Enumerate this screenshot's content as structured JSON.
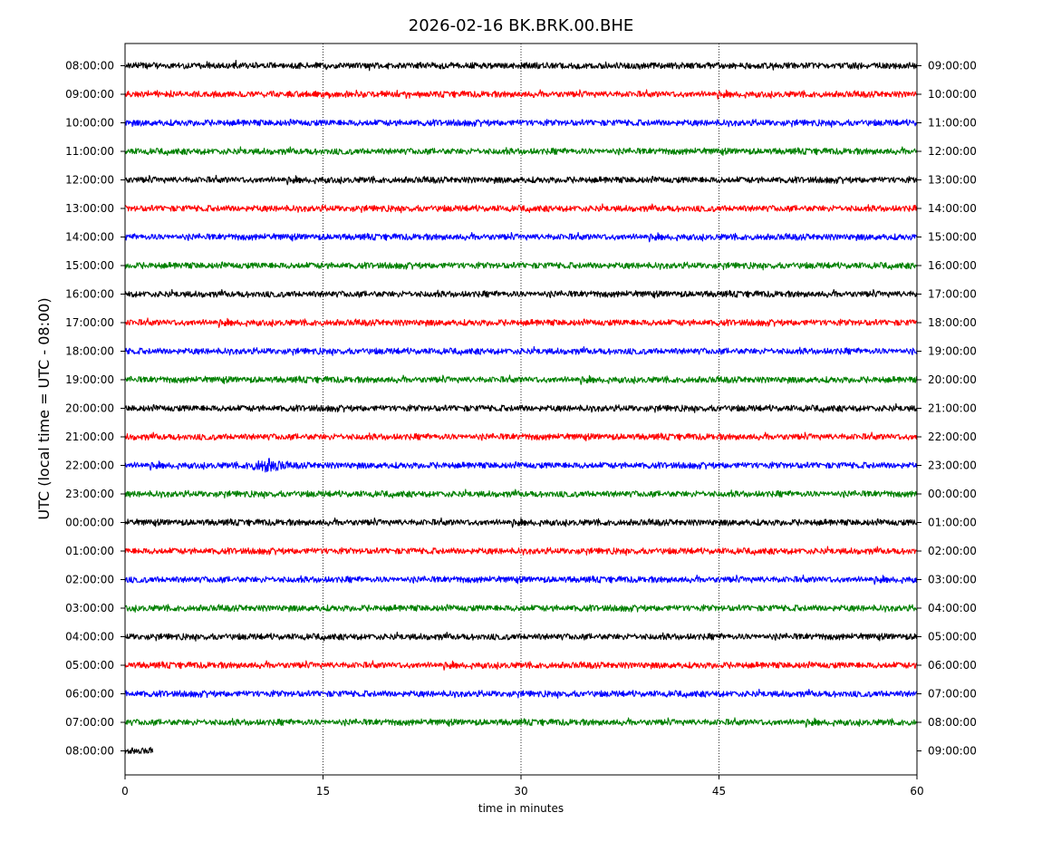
{
  "chart_data": {
    "type": "line",
    "title": "2026-02-16 BK.BRK.00.BHE",
    "xlabel": "time in minutes",
    "ylabel": "UTC (local time = UTC - 08:00)",
    "xlim": [
      0,
      60
    ],
    "x_ticks": [
      0,
      15,
      30,
      45,
      60
    ],
    "x_tick_labels": [
      "0",
      "15",
      "30",
      "45",
      "60"
    ],
    "grid": "vertical dotted lines at 15, 30, 45",
    "color_cycle": [
      "#000000",
      "#ff0000",
      "#0000ff",
      "#008000"
    ],
    "rows": [
      {
        "left_label": "08:00:00",
        "right_label": "09:00:00",
        "color": "#000000",
        "duration_min": 60
      },
      {
        "left_label": "09:00:00",
        "right_label": "10:00:00",
        "color": "#ff0000",
        "duration_min": 60
      },
      {
        "left_label": "10:00:00",
        "right_label": "11:00:00",
        "color": "#0000ff",
        "duration_min": 60
      },
      {
        "left_label": "11:00:00",
        "right_label": "12:00:00",
        "color": "#008000",
        "duration_min": 60
      },
      {
        "left_label": "12:00:00",
        "right_label": "13:00:00",
        "color": "#000000",
        "duration_min": 60
      },
      {
        "left_label": "13:00:00",
        "right_label": "14:00:00",
        "color": "#ff0000",
        "duration_min": 60
      },
      {
        "left_label": "14:00:00",
        "right_label": "15:00:00",
        "color": "#0000ff",
        "duration_min": 60
      },
      {
        "left_label": "15:00:00",
        "right_label": "16:00:00",
        "color": "#008000",
        "duration_min": 60
      },
      {
        "left_label": "16:00:00",
        "right_label": "17:00:00",
        "color": "#000000",
        "duration_min": 60
      },
      {
        "left_label": "17:00:00",
        "right_label": "18:00:00",
        "color": "#ff0000",
        "duration_min": 60
      },
      {
        "left_label": "18:00:00",
        "right_label": "19:00:00",
        "color": "#0000ff",
        "duration_min": 60
      },
      {
        "left_label": "19:00:00",
        "right_label": "20:00:00",
        "color": "#008000",
        "duration_min": 60
      },
      {
        "left_label": "20:00:00",
        "right_label": "21:00:00",
        "color": "#000000",
        "duration_min": 60
      },
      {
        "left_label": "21:00:00",
        "right_label": "22:00:00",
        "color": "#ff0000",
        "duration_min": 60
      },
      {
        "left_label": "22:00:00",
        "right_label": "23:00:00",
        "color": "#0000ff",
        "duration_min": 60
      },
      {
        "left_label": "23:00:00",
        "right_label": "00:00:00",
        "color": "#008000",
        "duration_min": 60
      },
      {
        "left_label": "00:00:00",
        "right_label": "01:00:00",
        "color": "#000000",
        "duration_min": 60
      },
      {
        "left_label": "01:00:00",
        "right_label": "02:00:00",
        "color": "#ff0000",
        "duration_min": 60
      },
      {
        "left_label": "02:00:00",
        "right_label": "03:00:00",
        "color": "#0000ff",
        "duration_min": 60
      },
      {
        "left_label": "03:00:00",
        "right_label": "04:00:00",
        "color": "#008000",
        "duration_min": 60
      },
      {
        "left_label": "04:00:00",
        "right_label": "05:00:00",
        "color": "#000000",
        "duration_min": 60
      },
      {
        "left_label": "05:00:00",
        "right_label": "06:00:00",
        "color": "#ff0000",
        "duration_min": 60
      },
      {
        "left_label": "06:00:00",
        "right_label": "07:00:00",
        "color": "#0000ff",
        "duration_min": 60
      },
      {
        "left_label": "07:00:00",
        "right_label": "08:00:00",
        "color": "#008000",
        "duration_min": 60
      },
      {
        "left_label": "08:00:00",
        "right_label": "09:00:00",
        "color": "#000000",
        "duration_min": 2.1
      }
    ],
    "events": [
      {
        "row": 14,
        "start_min": 9.0,
        "end_min": 12.5,
        "amplitude": "elevated"
      }
    ]
  }
}
